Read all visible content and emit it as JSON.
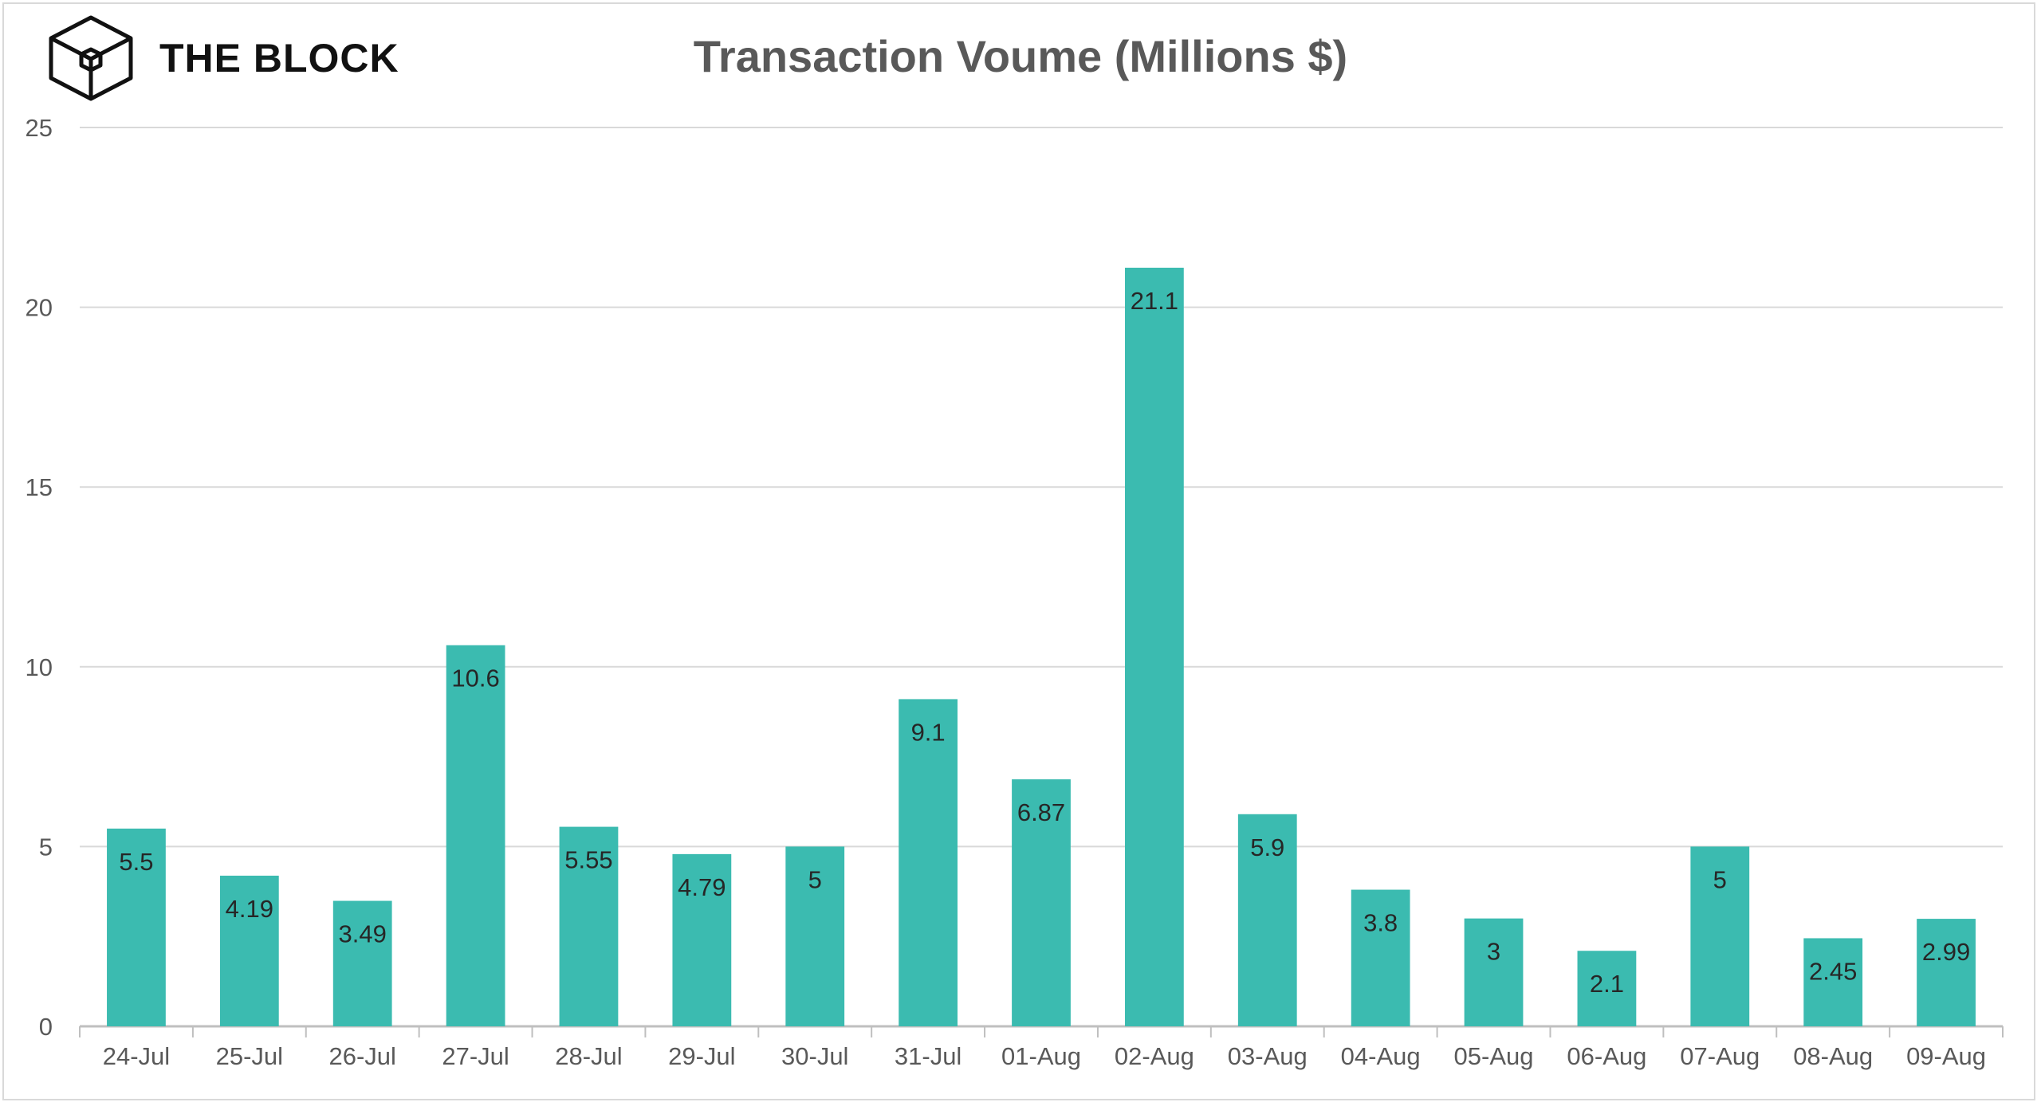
{
  "brand": {
    "name": "THE BLOCK",
    "logo_icon": "cube-logo-icon"
  },
  "chart_data": {
    "type": "bar",
    "title": "Transaction Voume (Millions $)",
    "xlabel": "",
    "ylabel": "",
    "ylim": [
      0,
      25
    ],
    "yticks": [
      0,
      5,
      10,
      15,
      20,
      25
    ],
    "grid": true,
    "legend": "none",
    "bar_color": "#3bbbb0",
    "categories": [
      "24-Jul",
      "25-Jul",
      "26-Jul",
      "27-Jul",
      "28-Jul",
      "29-Jul",
      "30-Jul",
      "31-Jul",
      "01-Aug",
      "02-Aug",
      "03-Aug",
      "04-Aug",
      "05-Aug",
      "06-Aug",
      "07-Aug",
      "08-Aug",
      "09-Aug"
    ],
    "values": [
      5.5,
      4.19,
      3.49,
      10.6,
      5.55,
      4.79,
      5,
      9.1,
      6.87,
      21.1,
      5.9,
      3.8,
      3,
      2.1,
      5,
      2.45,
      2.99
    ],
    "data_labels": [
      "5.5",
      "4.19",
      "3.49",
      "10.6",
      "5.55",
      "4.79",
      "5",
      "9.1",
      "6.87",
      "21.1",
      "5.9",
      "3.8",
      "3",
      "2.1",
      "5",
      "2.45",
      "2.99"
    ]
  }
}
